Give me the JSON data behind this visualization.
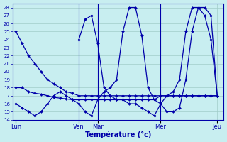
{
  "xlabel": "Température (°c)",
  "ylim": [
    14,
    28.5
  ],
  "yticks": [
    14,
    15,
    16,
    17,
    18,
    19,
    20,
    21,
    22,
    23,
    24,
    25,
    26,
    27,
    28
  ],
  "day_labels": [
    "Lun",
    "Ven",
    "Mar",
    "Mer",
    "Jeu"
  ],
  "day_positions": [
    0,
    10,
    13,
    23,
    32
  ],
  "background_color": "#c8eef0",
  "grid_color": "#a0ccc8",
  "line_color": "#0000aa",
  "lines": [
    {
      "x": [
        0,
        1,
        2,
        3,
        4,
        5,
        6,
        7,
        8,
        9,
        10,
        11,
        12,
        13,
        14,
        15,
        16,
        17,
        18,
        19,
        20,
        21,
        22,
        23,
        24,
        25,
        26,
        27,
        28,
        29,
        30,
        31,
        32
      ],
      "y": [
        25,
        23.5,
        22,
        21,
        20,
        19,
        18.5,
        18,
        17.5,
        17.3,
        17,
        17,
        17,
        17,
        17,
        17,
        17,
        17,
        17,
        17,
        17,
        17,
        17,
        17,
        17,
        17,
        17,
        17,
        17,
        17,
        17,
        17,
        17
      ]
    },
    {
      "x": [
        0,
        1,
        2,
        3,
        4,
        5,
        6,
        7,
        8,
        9,
        10,
        11,
        12,
        13,
        14,
        15,
        16,
        17,
        18,
        19,
        20,
        21,
        22,
        23,
        24,
        25,
        26,
        27,
        28,
        29,
        30,
        31,
        32
      ],
      "y": [
        18,
        18,
        17.5,
        17.3,
        17.2,
        17,
        16.8,
        16.7,
        16.6,
        16.5,
        16.5,
        16.5,
        16.5,
        16.5,
        16.5,
        16.5,
        16.5,
        16.5,
        16.5,
        16.5,
        16.5,
        16.5,
        16.5,
        17,
        17,
        17,
        17,
        17,
        17,
        17,
        17,
        17,
        17
      ]
    },
    {
      "x": [
        0,
        1,
        2,
        3,
        4,
        5,
        6,
        7,
        8,
        9,
        10,
        11,
        12,
        13,
        14,
        15,
        16,
        17,
        18,
        19,
        20,
        21,
        22,
        23,
        24,
        25,
        26,
        27,
        28,
        29,
        30,
        31,
        32
      ],
      "y": [
        16,
        15.5,
        15,
        14.5,
        15,
        16,
        17,
        17.5,
        17,
        16.5,
        16,
        15,
        14.5,
        16.5,
        17.5,
        18,
        19,
        25,
        28,
        28,
        24.5,
        18,
        16.5,
        16,
        15,
        15,
        15.5,
        19,
        25,
        28,
        28,
        27,
        17
      ]
    },
    {
      "x": [
        10,
        11,
        12,
        13,
        14,
        15,
        16,
        17,
        18,
        19,
        20,
        21,
        22,
        23,
        24,
        25,
        26,
        27,
        28,
        29,
        30,
        31,
        32
      ],
      "y": [
        24,
        26.5,
        27,
        23.5,
        18,
        17,
        16.5,
        16.5,
        16,
        16,
        15.5,
        15,
        14.5,
        16,
        17,
        17.5,
        19,
        25,
        28,
        28,
        27,
        24,
        17
      ]
    }
  ],
  "vlines": [
    10,
    13,
    23
  ]
}
